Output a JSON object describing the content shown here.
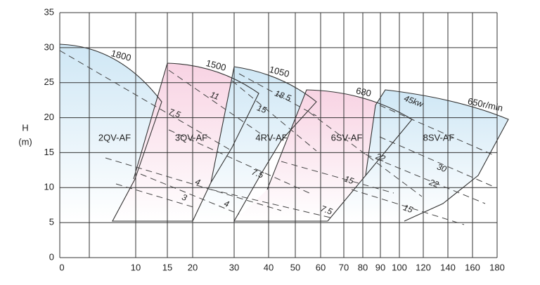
{
  "chart_data": {
    "type": "performance-map",
    "y_label": "H",
    "y_unit": "(m)",
    "ylim": [
      0,
      35
    ],
    "yticks": [
      0,
      5,
      10,
      15,
      20,
      25,
      30,
      35
    ],
    "xlim": [
      0,
      180
    ],
    "xticks": [
      0,
      10,
      15,
      20,
      30,
      40,
      50,
      60,
      70,
      80,
      90,
      100,
      120,
      140,
      160,
      180
    ],
    "grid": true,
    "regions": [
      {
        "name": "2QV-AF",
        "speed": "1800",
        "color": "#cfe7f5",
        "power": [
          "7.5",
          "4",
          "3"
        ]
      },
      {
        "name": "3QV-AF",
        "speed": "1500",
        "color": "#f8d3e3",
        "power": [
          "11",
          "7.5",
          "4"
        ]
      },
      {
        "name": "4RV-AF",
        "speed": "1050",
        "color": "#cfe7f5",
        "power": [
          "18.5",
          "15",
          "7.5"
        ]
      },
      {
        "name": "6SV-AF",
        "speed": "680",
        "color": "#f8d3e3",
        "power": [
          "22",
          "15"
        ]
      },
      {
        "name": "8SV-AF",
        "speed": "650r/min",
        "color": "#cfe7f5",
        "power": [
          "45kw",
          "30",
          "22",
          "15"
        ]
      }
    ]
  }
}
